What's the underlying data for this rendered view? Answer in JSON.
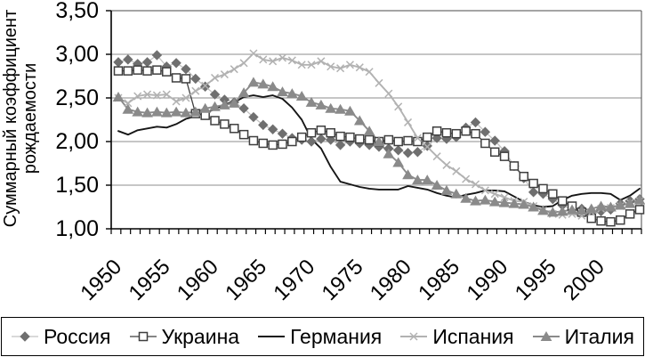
{
  "y_axis": {
    "title_line1": "Суммарный коэффициент",
    "title_line2": "рождаемости"
  },
  "chart_data": {
    "type": "line",
    "title": "",
    "xlabel": "",
    "ylabel": "Суммарный коэффициент рождаемости",
    "ylim": [
      1.0,
      3.5
    ],
    "y_ticks": [
      1.0,
      1.5,
      2.0,
      2.5,
      3.0,
      3.5
    ],
    "y_tick_labels": [
      "1,00",
      "1,50",
      "2,00",
      "2,50",
      "3,00",
      "3,50"
    ],
    "x_tick_labels": [
      "1950",
      "1955",
      "1960",
      "1965",
      "1970",
      "1975",
      "1980",
      "1985",
      "1990",
      "1995",
      "2000"
    ],
    "grid": "horizontal",
    "legend_position": "bottom",
    "axis_color": "#000000",
    "grid_color": "#8c8c8c",
    "x": [
      1950,
      1951,
      1952,
      1953,
      1954,
      1955,
      1956,
      1957,
      1958,
      1959,
      1960,
      1961,
      1962,
      1963,
      1964,
      1965,
      1966,
      1967,
      1968,
      1969,
      1970,
      1971,
      1972,
      1973,
      1974,
      1975,
      1976,
      1977,
      1978,
      1979,
      1980,
      1981,
      1982,
      1983,
      1984,
      1985,
      1986,
      1987,
      1988,
      1989,
      1990,
      1991,
      1992,
      1993,
      1994,
      1995,
      1996,
      1997,
      1998,
      1999,
      2000,
      2001,
      2002,
      2003,
      2004
    ],
    "series": [
      {
        "id": "russia",
        "name": "Россия",
        "marker": "diamond",
        "marker_color": "#6f6f6f",
        "line_color": "#c2c2c2",
        "line_width": 1.3,
        "values": [
          2.91,
          2.94,
          2.89,
          2.91,
          2.99,
          2.86,
          2.9,
          2.83,
          2.72,
          2.63,
          2.54,
          2.48,
          2.45,
          2.38,
          2.28,
          2.19,
          2.14,
          2.09,
          2.04,
          2.02,
          2.0,
          2.03,
          2.02,
          1.96,
          2.0,
          1.98,
          1.96,
          1.94,
          1.92,
          1.9,
          1.87,
          1.88,
          1.95,
          2.04,
          2.03,
          2.05,
          2.16,
          2.22,
          2.11,
          2.01,
          1.89,
          1.72,
          1.58,
          1.42,
          1.4,
          1.34,
          1.27,
          1.22,
          1.23,
          1.16,
          1.2,
          1.22,
          1.29,
          1.32,
          1.34
        ]
      },
      {
        "id": "ukraine",
        "name": "Украина",
        "marker": "square-open",
        "marker_color": "#3f3f3f",
        "line_color": "#3f3f3f",
        "line_width": 1.3,
        "values": [
          2.81,
          2.81,
          2.82,
          2.81,
          2.82,
          2.8,
          2.73,
          2.72,
          2.32,
          2.3,
          2.24,
          2.2,
          2.15,
          2.08,
          2.01,
          1.98,
          1.96,
          1.97,
          2.0,
          2.05,
          2.1,
          2.13,
          2.1,
          2.06,
          2.05,
          2.03,
          2.02,
          2.0,
          2.02,
          2.0,
          2.01,
          2.0,
          2.05,
          2.12,
          2.1,
          2.09,
          2.12,
          2.09,
          1.98,
          1.88,
          1.83,
          1.72,
          1.6,
          1.52,
          1.46,
          1.4,
          1.32,
          1.26,
          1.19,
          1.12,
          1.09,
          1.08,
          1.1,
          1.17,
          1.22
        ]
      },
      {
        "id": "germany",
        "name": "Германия",
        "marker": "none",
        "marker_color": "#161616",
        "line_color": "#161616",
        "line_width": 1.9,
        "values": [
          2.12,
          2.08,
          2.13,
          2.15,
          2.17,
          2.16,
          2.2,
          2.26,
          2.29,
          2.33,
          2.37,
          2.43,
          2.45,
          2.51,
          2.53,
          2.51,
          2.53,
          2.49,
          2.39,
          2.25,
          2.03,
          1.92,
          1.71,
          1.54,
          1.51,
          1.48,
          1.46,
          1.45,
          1.45,
          1.45,
          1.49,
          1.47,
          1.45,
          1.41,
          1.38,
          1.36,
          1.39,
          1.41,
          1.44,
          1.44,
          1.43,
          1.37,
          1.31,
          1.27,
          1.25,
          1.26,
          1.33,
          1.38,
          1.4,
          1.41,
          1.41,
          1.4,
          1.33,
          1.38,
          1.46
        ]
      },
      {
        "id": "spain",
        "name": "Испания",
        "marker": "x",
        "marker_color": "#b2b2b2",
        "line_color": "#b2b2b2",
        "line_width": 1.9,
        "values": [
          2.5,
          2.44,
          2.52,
          2.54,
          2.53,
          2.54,
          2.46,
          2.5,
          2.58,
          2.64,
          2.73,
          2.77,
          2.83,
          2.9,
          3.01,
          2.94,
          2.92,
          2.96,
          2.93,
          2.88,
          2.88,
          2.92,
          2.86,
          2.84,
          2.88,
          2.85,
          2.8,
          2.67,
          2.55,
          2.4,
          2.22,
          2.04,
          1.94,
          1.83,
          1.73,
          1.66,
          1.57,
          1.51,
          1.44,
          1.4,
          1.36,
          1.32,
          1.31,
          1.26,
          1.21,
          1.17,
          1.16,
          1.17,
          1.15,
          1.19,
          1.23,
          1.24,
          1.26,
          1.3,
          1.32
        ]
      },
      {
        "id": "italy",
        "name": "Италия",
        "marker": "triangle",
        "marker_color": "#8a8a8a",
        "line_color": "#8a8a8a",
        "line_width": 1.9,
        "values": [
          2.51,
          2.37,
          2.34,
          2.33,
          2.34,
          2.33,
          2.34,
          2.33,
          2.34,
          2.38,
          2.4,
          2.42,
          2.44,
          2.56,
          2.68,
          2.66,
          2.63,
          2.57,
          2.55,
          2.52,
          2.45,
          2.42,
          2.38,
          2.37,
          2.35,
          2.24,
          2.12,
          2.0,
          1.86,
          1.76,
          1.62,
          1.56,
          1.56,
          1.5,
          1.44,
          1.4,
          1.35,
          1.32,
          1.33,
          1.31,
          1.3,
          1.29,
          1.28,
          1.25,
          1.21,
          1.19,
          1.2,
          1.22,
          1.21,
          1.23,
          1.26,
          1.25,
          1.27,
          1.29,
          1.33
        ]
      }
    ]
  }
}
